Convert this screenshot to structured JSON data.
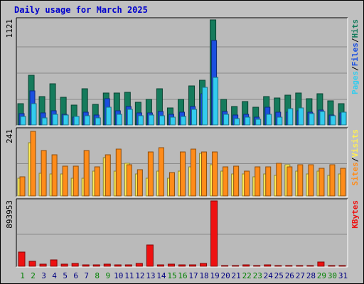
{
  "title": "Daily usage for March 2025",
  "colors": {
    "background": "#c0c0c0",
    "plot_background": "#bababa",
    "title": "#0000cc",
    "hits": "#157b5c",
    "files": "#1a4fe0",
    "pages": "#33ccee",
    "visits": "#ffee55",
    "sites": "#ff8c1a",
    "kbytes": "#ee1111",
    "weekend_label": "#008000",
    "weekday_label": "#000080"
  },
  "chart_data": [
    {
      "type": "bar",
      "name": "hits-files-pages",
      "ymax_label": "1121",
      "ylim": [
        0,
        1121
      ],
      "legend": [
        "Pages",
        "/",
        "Files",
        "/",
        "Hits"
      ],
      "categories": [
        "1",
        "2",
        "3",
        "4",
        "5",
        "6",
        "7",
        "8",
        "9",
        "10",
        "11",
        "12",
        "13",
        "14",
        "15",
        "16",
        "17",
        "18",
        "19",
        "20",
        "21",
        "22",
        "23",
        "24",
        "25",
        "26",
        "27",
        "28",
        "29",
        "30",
        "31"
      ],
      "weekend": [
        1,
        2,
        8,
        9,
        15,
        16,
        22,
        23,
        29,
        30
      ],
      "series": [
        {
          "name": "Hits",
          "values": [
            225,
            530,
            300,
            440,
            295,
            210,
            385,
            220,
            340,
            340,
            350,
            240,
            275,
            385,
            185,
            270,
            420,
            480,
            1121,
            270,
            200,
            250,
            190,
            300,
            290,
            320,
            340,
            280,
            335,
            260,
            225
          ]
        },
        {
          "name": "Files",
          "values": [
            120,
            360,
            130,
            150,
            110,
            85,
            135,
            105,
            280,
            150,
            200,
            130,
            125,
            145,
            115,
            140,
            195,
            330,
            905,
            145,
            105,
            110,
            80,
            190,
            135,
            135,
            150,
            135,
            160,
            105,
            125
          ]
        },
        {
          "name": "Pages",
          "values": [
            90,
            230,
            75,
            110,
            105,
            90,
            100,
            75,
            190,
            110,
            165,
            95,
            105,
            100,
            85,
            90,
            165,
            400,
            505,
            110,
            70,
            85,
            60,
            110,
            85,
            175,
            180,
            120,
            145,
            100,
            135
          ]
        }
      ]
    },
    {
      "type": "bar",
      "name": "visits-sites",
      "ymax_label": "241",
      "ylim": [
        0,
        241
      ],
      "legend": [
        "Sites",
        "/",
        "Visits"
      ],
      "categories": [
        "1",
        "2",
        "3",
        "4",
        "5",
        "6",
        "7",
        "8",
        "9",
        "10",
        "11",
        "12",
        "13",
        "14",
        "15",
        "16",
        "17",
        "18",
        "19",
        "20",
        "21",
        "22",
        "23",
        "24",
        "25",
        "26",
        "27",
        "28",
        "29",
        "30",
        "31"
      ],
      "series": [
        {
          "name": "Visits",
          "values": [
            65,
            194,
            82,
            80,
            80,
            65,
            65,
            90,
            140,
            90,
            120,
            80,
            65,
            90,
            65,
            90,
            105,
            155,
            115,
            90,
            80,
            80,
            70,
            80,
            75,
            115,
            90,
            80,
            90,
            75,
            80
          ]
        },
        {
          "name": "Sites",
          "values": [
            70,
            235,
            165,
            150,
            110,
            110,
            165,
            105,
            150,
            170,
            115,
            95,
            160,
            175,
            85,
            160,
            170,
            160,
            160,
            105,
            110,
            90,
            105,
            105,
            120,
            105,
            115,
            115,
            100,
            115,
            100
          ]
        }
      ]
    },
    {
      "type": "bar",
      "name": "kbytes",
      "ymax_label": "893953",
      "ylim": [
        0,
        893953
      ],
      "legend": [
        "KBytes"
      ],
      "categories": [
        "1",
        "2",
        "3",
        "4",
        "5",
        "6",
        "7",
        "8",
        "9",
        "10",
        "11",
        "12",
        "13",
        "14",
        "15",
        "16",
        "17",
        "18",
        "19",
        "20",
        "21",
        "22",
        "23",
        "24",
        "25",
        "26",
        "27",
        "28",
        "29",
        "30",
        "31"
      ],
      "series": [
        {
          "name": "KBytes",
          "values": [
            195000,
            70000,
            28000,
            90000,
            30000,
            35000,
            22000,
            22000,
            28000,
            24000,
            16000,
            40000,
            290000,
            20000,
            26000,
            18000,
            18000,
            35000,
            893953,
            12000,
            14000,
            16000,
            12000,
            18000,
            12000,
            12000,
            12000,
            12000,
            55000,
            14000,
            14000
          ]
        }
      ]
    }
  ]
}
